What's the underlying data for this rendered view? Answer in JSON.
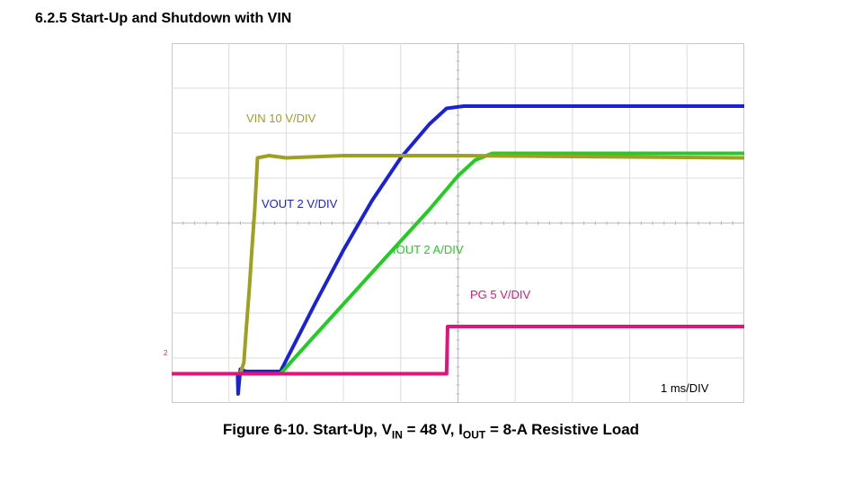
{
  "section_heading": "6.2.5 Start-Up and Shutdown with VIN",
  "caption": {
    "prefix": "Figure 6-10. Start-Up, V",
    "vin_sub": "IN",
    "mid": " = 48 V, I",
    "iout_sub": "OUT",
    "suffix": " = 8-A Resistive Load"
  },
  "chart_data": {
    "type": "line",
    "x_unit_label": "1 ms/DIV",
    "xlim": [
      0,
      10
    ],
    "ylim": [
      -5.6,
      2.4
    ],
    "grid": true,
    "channel_marker": "2",
    "series": [
      {
        "name": "VIN 10 V/DIV",
        "color": "#a0a020",
        "x": [
          0,
          1.2,
          1.26,
          1.3,
          1.36,
          1.4,
          1.45,
          1.5,
          1.7,
          2.0,
          3.0,
          5.0,
          10.0
        ],
        "y": [
          -4.95,
          -4.95,
          -4.7,
          -4.0,
          -3.0,
          -2.2,
          -1.3,
          -0.15,
          -0.1,
          -0.15,
          -0.1,
          -0.1,
          -0.15
        ]
      },
      {
        "name": "VOUT 2 V/DIV",
        "color": "#1a22d8",
        "x": [
          0,
          1.15,
          1.16,
          1.2,
          1.3,
          1.4,
          1.9,
          2.5,
          3.0,
          3.5,
          4.0,
          4.5,
          4.8,
          5.1,
          10.0
        ],
        "y": [
          -4.95,
          -4.95,
          -5.4,
          -4.85,
          -4.9,
          -4.9,
          -4.9,
          -3.4,
          -2.2,
          -1.1,
          -0.15,
          0.6,
          0.95,
          1.0,
          1.0
        ]
      },
      {
        "name": "IOUT 2 A/DIV",
        "color": "#22cc22",
        "x": [
          0,
          1.9,
          2.5,
          3.0,
          3.5,
          4.0,
          4.5,
          5.0,
          5.3,
          5.6,
          10.0
        ],
        "y": [
          -4.95,
          -4.95,
          -4.1,
          -3.4,
          -2.7,
          -2.0,
          -1.3,
          -0.55,
          -0.2,
          -0.05,
          -0.05
        ]
      },
      {
        "name": "PG 5 V/DIV",
        "color": "#e0157a",
        "x": [
          0,
          4.8,
          4.82,
          10.0
        ],
        "y": [
          -4.95,
          -4.95,
          -3.9,
          -3.9
        ]
      }
    ]
  }
}
